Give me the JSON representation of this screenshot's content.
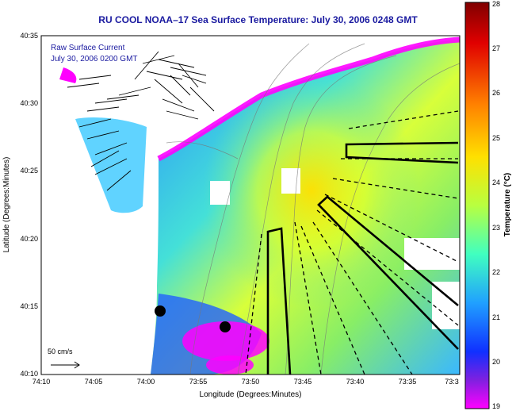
{
  "title": "RU COOL  NOAA–17  Sea Surface Temperature:  July 30, 2006 0248 GMT",
  "legend": {
    "label": "Raw Surface Current",
    "date": "July 30, 2006 0200 GMT"
  },
  "scale_label": "50 cm/s",
  "xaxis": {
    "label": "Longitude (Degrees:Minutes)",
    "ticks": [
      "74:10",
      "74:05",
      "74:00",
      "73:55",
      "73:50",
      "73:45",
      "73:40",
      "73:35",
      "73:3"
    ]
  },
  "yaxis": {
    "label": "Latitude (Degrees:Minutes)",
    "ticks": [
      "40:35",
      "40:30",
      "40:25",
      "40:20",
      "40:15",
      "40:10"
    ]
  },
  "colorbar": {
    "label": "Temperature (°C)",
    "ticks": [
      "28",
      "27",
      "26",
      "25",
      "24",
      "23",
      "22",
      "21",
      "20",
      "19"
    ],
    "min": 19,
    "max": 28
  },
  "colors": {
    "title": "#1a1aa0",
    "land": "#ffffff",
    "cloud": "#ff00ff"
  }
}
